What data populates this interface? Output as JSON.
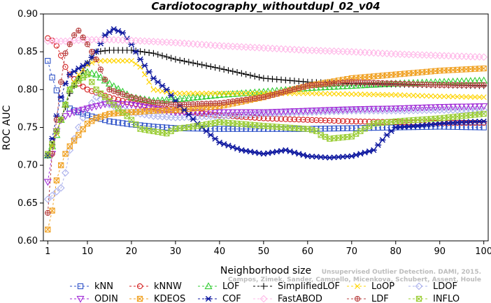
{
  "chart_data": {
    "type": "line",
    "title": "Cardiotocography_withoutdupl_02_v04",
    "xlabel": "Neighborhood size",
    "ylabel": "ROC AUC",
    "xlim": [
      0,
      101
    ],
    "ylim": [
      0.6,
      0.9
    ],
    "xticks": [
      1,
      10,
      20,
      30,
      40,
      50,
      60,
      70,
      80,
      90,
      100
    ],
    "yticks": [
      "0.60",
      "0.65",
      "0.70",
      "0.75",
      "0.80",
      "0.85",
      "0.90"
    ],
    "grid": false,
    "legend_position": "bottom",
    "series": [
      {
        "name": "kNN",
        "color": "#2e52c8",
        "marker": "square",
        "points": [
          [
            1,
            0.838
          ],
          [
            2,
            0.816
          ],
          [
            3,
            0.799
          ],
          [
            4,
            0.788
          ],
          [
            5,
            0.78
          ],
          [
            6,
            0.775
          ],
          [
            8,
            0.77
          ],
          [
            10,
            0.766
          ],
          [
            12,
            0.763
          ],
          [
            15,
            0.758
          ],
          [
            20,
            0.754
          ],
          [
            25,
            0.751
          ],
          [
            30,
            0.749
          ],
          [
            40,
            0.748
          ],
          [
            50,
            0.748
          ],
          [
            60,
            0.748
          ],
          [
            70,
            0.749
          ],
          [
            80,
            0.75
          ],
          [
            90,
            0.751
          ],
          [
            100,
            0.75
          ]
        ]
      },
      {
        "name": "kNNW",
        "color": "#d42020",
        "marker": "circle",
        "points": [
          [
            1,
            0.868
          ],
          [
            2,
            0.865
          ],
          [
            3,
            0.858
          ],
          [
            4,
            0.845
          ],
          [
            5,
            0.83
          ],
          [
            6,
            0.82
          ],
          [
            8,
            0.808
          ],
          [
            10,
            0.8
          ],
          [
            12,
            0.796
          ],
          [
            15,
            0.79
          ],
          [
            20,
            0.782
          ],
          [
            25,
            0.777
          ],
          [
            30,
            0.772
          ],
          [
            40,
            0.766
          ],
          [
            50,
            0.762
          ],
          [
            60,
            0.76
          ],
          [
            70,
            0.758
          ],
          [
            80,
            0.757
          ],
          [
            90,
            0.756
          ],
          [
            100,
            0.756
          ]
        ]
      },
      {
        "name": "LOF",
        "color": "#33cc33",
        "marker": "triangle-up",
        "points": [
          [
            1,
            0.713
          ],
          [
            2,
            0.725
          ],
          [
            3,
            0.74
          ],
          [
            4,
            0.76
          ],
          [
            5,
            0.78
          ],
          [
            6,
            0.8
          ],
          [
            8,
            0.815
          ],
          [
            10,
            0.823
          ],
          [
            12,
            0.82
          ],
          [
            15,
            0.808
          ],
          [
            20,
            0.79
          ],
          [
            25,
            0.785
          ],
          [
            30,
            0.787
          ],
          [
            40,
            0.793
          ],
          [
            50,
            0.797
          ],
          [
            60,
            0.802
          ],
          [
            70,
            0.805
          ],
          [
            80,
            0.808
          ],
          [
            90,
            0.81
          ],
          [
            100,
            0.812
          ]
        ]
      },
      {
        "name": "SimplifiedLOF",
        "color": "#000000",
        "marker": "plus",
        "points": [
          [
            1,
            0.713
          ],
          [
            2,
            0.727
          ],
          [
            3,
            0.745
          ],
          [
            4,
            0.76
          ],
          [
            5,
            0.777
          ],
          [
            6,
            0.795
          ],
          [
            8,
            0.815
          ],
          [
            10,
            0.835
          ],
          [
            12,
            0.85
          ],
          [
            15,
            0.852
          ],
          [
            20,
            0.852
          ],
          [
            25,
            0.848
          ],
          [
            30,
            0.84
          ],
          [
            40,
            0.828
          ],
          [
            50,
            0.815
          ],
          [
            60,
            0.81
          ],
          [
            70,
            0.808
          ],
          [
            80,
            0.807
          ],
          [
            90,
            0.806
          ],
          [
            100,
            0.805
          ]
        ]
      },
      {
        "name": "LoOP",
        "color": "#ffd400",
        "marker": "cross",
        "points": [
          [
            1,
            0.715
          ],
          [
            2,
            0.725
          ],
          [
            3,
            0.742
          ],
          [
            4,
            0.76
          ],
          [
            5,
            0.78
          ],
          [
            6,
            0.8
          ],
          [
            8,
            0.82
          ],
          [
            10,
            0.833
          ],
          [
            12,
            0.838
          ],
          [
            15,
            0.838
          ],
          [
            20,
            0.838
          ],
          [
            22,
            0.83
          ],
          [
            25,
            0.8
          ],
          [
            30,
            0.795
          ],
          [
            40,
            0.795
          ],
          [
            50,
            0.795
          ],
          [
            60,
            0.795
          ],
          [
            70,
            0.794
          ],
          [
            80,
            0.793
          ],
          [
            90,
            0.791
          ],
          [
            100,
            0.79
          ]
        ]
      },
      {
        "name": "LDOF",
        "color": "#aab0ec",
        "marker": "diamond",
        "points": [
          [
            1,
            0.655
          ],
          [
            2,
            0.66
          ],
          [
            3,
            0.665
          ],
          [
            4,
            0.67
          ],
          [
            5,
            0.69
          ],
          [
            6,
            0.72
          ],
          [
            8,
            0.75
          ],
          [
            10,
            0.775
          ],
          [
            12,
            0.79
          ],
          [
            15,
            0.78
          ],
          [
            20,
            0.77
          ],
          [
            25,
            0.765
          ],
          [
            30,
            0.763
          ],
          [
            40,
            0.765
          ],
          [
            50,
            0.768
          ],
          [
            60,
            0.77
          ],
          [
            70,
            0.772
          ],
          [
            80,
            0.772
          ],
          [
            90,
            0.773
          ],
          [
            100,
            0.773
          ]
        ]
      },
      {
        "name": "ODIN",
        "color": "#a02ad6",
        "marker": "triangle-down",
        "points": [
          [
            1,
            0.678
          ],
          [
            2,
            0.715
          ],
          [
            3,
            0.745
          ],
          [
            4,
            0.76
          ],
          [
            5,
            0.765
          ],
          [
            6,
            0.768
          ],
          [
            8,
            0.772
          ],
          [
            10,
            0.775
          ],
          [
            12,
            0.778
          ],
          [
            15,
            0.782
          ],
          [
            20,
            0.78
          ],
          [
            25,
            0.775
          ],
          [
            30,
            0.77
          ],
          [
            40,
            0.77
          ],
          [
            50,
            0.77
          ],
          [
            60,
            0.772
          ],
          [
            70,
            0.774
          ],
          [
            80,
            0.775
          ],
          [
            90,
            0.777
          ],
          [
            100,
            0.778
          ]
        ]
      },
      {
        "name": "KDEOS",
        "color": "#f0a020",
        "marker": "square-x",
        "points": [
          [
            1,
            0.615
          ],
          [
            2,
            0.64
          ],
          [
            3,
            0.68
          ],
          [
            4,
            0.7
          ],
          [
            5,
            0.715
          ],
          [
            6,
            0.725
          ],
          [
            8,
            0.74
          ],
          [
            10,
            0.755
          ],
          [
            12,
            0.762
          ],
          [
            15,
            0.768
          ],
          [
            20,
            0.77
          ],
          [
            25,
            0.772
          ],
          [
            30,
            0.773
          ],
          [
            40,
            0.778
          ],
          [
            50,
            0.79
          ],
          [
            60,
            0.805
          ],
          [
            70,
            0.815
          ],
          [
            80,
            0.82
          ],
          [
            90,
            0.825
          ],
          [
            100,
            0.828
          ]
        ]
      },
      {
        "name": "COF",
        "color": "#101aa0",
        "marker": "asterisk",
        "points": [
          [
            1,
            0.713
          ],
          [
            2,
            0.735
          ],
          [
            3,
            0.765
          ],
          [
            4,
            0.79
          ],
          [
            5,
            0.808
          ],
          [
            6,
            0.82
          ],
          [
            8,
            0.828
          ],
          [
            10,
            0.835
          ],
          [
            12,
            0.85
          ],
          [
            14,
            0.872
          ],
          [
            16,
            0.88
          ],
          [
            18,
            0.875
          ],
          [
            20,
            0.86
          ],
          [
            22,
            0.84
          ],
          [
            25,
            0.815
          ],
          [
            28,
            0.8
          ],
          [
            30,
            0.785
          ],
          [
            35,
            0.755
          ],
          [
            40,
            0.73
          ],
          [
            45,
            0.72
          ],
          [
            50,
            0.715
          ],
          [
            55,
            0.72
          ],
          [
            60,
            0.712
          ],
          [
            65,
            0.71
          ],
          [
            70,
            0.712
          ],
          [
            75,
            0.72
          ],
          [
            78,
            0.74
          ],
          [
            80,
            0.75
          ],
          [
            85,
            0.752
          ],
          [
            90,
            0.755
          ],
          [
            95,
            0.757
          ],
          [
            100,
            0.758
          ]
        ]
      },
      {
        "name": "FastABOD",
        "color": "#ffb8e8",
        "marker": "diamond",
        "points": [
          [
            1,
            0.864
          ],
          [
            5,
            0.864
          ],
          [
            10,
            0.866
          ],
          [
            15,
            0.866
          ],
          [
            20,
            0.865
          ],
          [
            30,
            0.862
          ],
          [
            40,
            0.858
          ],
          [
            50,
            0.855
          ],
          [
            60,
            0.852
          ],
          [
            70,
            0.85
          ],
          [
            80,
            0.847
          ],
          [
            90,
            0.845
          ],
          [
            100,
            0.843
          ]
        ]
      },
      {
        "name": "LDF",
        "color": "#b84040",
        "marker": "circle-plus",
        "points": [
          [
            1,
            0.637
          ],
          [
            2,
            0.715
          ],
          [
            3,
            0.76
          ],
          [
            4,
            0.81
          ],
          [
            5,
            0.848
          ],
          [
            6,
            0.86
          ],
          [
            7,
            0.872
          ],
          [
            8,
            0.878
          ],
          [
            10,
            0.86
          ],
          [
            12,
            0.84
          ],
          [
            15,
            0.8
          ],
          [
            20,
            0.79
          ],
          [
            25,
            0.783
          ],
          [
            30,
            0.78
          ],
          [
            40,
            0.782
          ],
          [
            50,
            0.79
          ],
          [
            60,
            0.805
          ],
          [
            70,
            0.81
          ],
          [
            80,
            0.808
          ],
          [
            90,
            0.806
          ],
          [
            100,
            0.806
          ]
        ]
      },
      {
        "name": "INFLO",
        "color": "#99cc33",
        "marker": "square-x",
        "points": [
          [
            1,
            0.715
          ],
          [
            2,
            0.728
          ],
          [
            3,
            0.745
          ],
          [
            4,
            0.76
          ],
          [
            5,
            0.78
          ],
          [
            6,
            0.8
          ],
          [
            8,
            0.812
          ],
          [
            10,
            0.82
          ],
          [
            12,
            0.8
          ],
          [
            15,
            0.785
          ],
          [
            20,
            0.76
          ],
          [
            22,
            0.748
          ],
          [
            25,
            0.745
          ],
          [
            28,
            0.742
          ],
          [
            30,
            0.748
          ],
          [
            35,
            0.752
          ],
          [
            40,
            0.757
          ],
          [
            50,
            0.752
          ],
          [
            60,
            0.748
          ],
          [
            62,
            0.745
          ],
          [
            63,
            0.74
          ],
          [
            65,
            0.735
          ],
          [
            70,
            0.738
          ],
          [
            72,
            0.745
          ],
          [
            75,
            0.755
          ],
          [
            80,
            0.758
          ],
          [
            90,
            0.762
          ],
          [
            100,
            0.768
          ]
        ]
      }
    ]
  },
  "watermark": {
    "line1": "Unsupervised Outlier Detection. DAMI, 2015.",
    "line2": "Campos, Zimek, Sander, Campello, Micenkova, Schubert, Assent, Houle"
  }
}
